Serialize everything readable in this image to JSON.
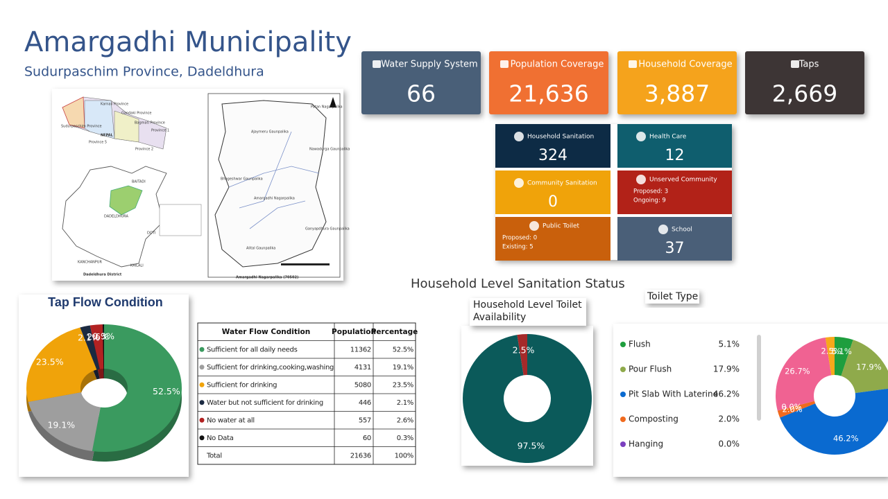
{
  "header": {
    "title": "Amargadhi Municipality",
    "subtitle": "Sudurpaschim Province, Dadeldhura"
  },
  "map": {
    "labels": [
      "NEPAL",
      "Karnali Province",
      "Gandaki Province",
      "Sudurpaschim Province",
      "Bagmati Province",
      "Province 1",
      "Province 2",
      "Province 5",
      "BAITADI",
      "DADELDHURA",
      "DOTI",
      "KANCHANPUR",
      "KAILALI",
      "Dadeldhura District",
      "Patan Nagarpalika",
      "Ajaymeru Gaunpalika",
      "Nawadurga Gaunpalika",
      "Bhageshwar Gaunpalika",
      "Amargadhi Nagarpalika",
      "Ganyapdhura Gaunpalika",
      "Alital Gaunpalika",
      "Amargadhi Nagarpalika (70502)"
    ]
  },
  "kpis": [
    {
      "label": "Water Supply System",
      "value": "66"
    },
    {
      "label": "Population Coverage",
      "value": "21,636"
    },
    {
      "label": "Household Coverage",
      "value": "3,887"
    },
    {
      "label": "Taps",
      "value": "2,669"
    }
  ],
  "cards": [
    {
      "label": "Household Sanitation",
      "value": "324"
    },
    {
      "label": "Health Care",
      "value": "12"
    },
    {
      "label": "Community Sanitation",
      "value": "0"
    },
    {
      "label": "Unserved Community",
      "lines": [
        "Proposed: 3",
        "Ongoing: 9"
      ]
    },
    {
      "label": "Public Toilet",
      "lines": [
        "Proposed: 0",
        "Existing: 5"
      ]
    },
    {
      "label": "School",
      "value": "37"
    }
  ],
  "table": {
    "columns": [
      "Water Flow Condition",
      "Population",
      "Percentage"
    ],
    "rows": [
      [
        "Sufficient for all daily needs",
        "11362",
        "52.5%"
      ],
      [
        "Sufficient for drinking,cooking,washing",
        "4131",
        "19.1%"
      ],
      [
        "Sufficient for drinking",
        "5080",
        "23.5%"
      ],
      [
        "Water but not sufficient for drinking",
        "446",
        "2.1%"
      ],
      [
        "No water at all",
        "557",
        "2.6%"
      ],
      [
        "No Data",
        "60",
        "0.3%"
      ],
      [
        "Total",
        "21636",
        "100%"
      ]
    ]
  },
  "section_title": "Household Level Sanitation Status",
  "chart_data": [
    {
      "type": "donut",
      "title": "Tap Flow Condition",
      "three_d": true,
      "categories": [
        "Sufficient for all daily needs",
        "Sufficient for drinking,cooking,washing",
        "Sufficient for drinking",
        "Water but not sufficient for drinking",
        "No water at all",
        "No Data"
      ],
      "values": [
        52.5,
        19.1,
        23.5,
        2.1,
        2.6,
        0.3
      ],
      "value_labels": [
        "52.5%",
        "19.1%",
        "23.5%",
        "2.1%",
        "2.6%",
        "0.3%"
      ],
      "colors": [
        "#3a9a5f",
        "#9e9e9e",
        "#f0a30a",
        "#1b2a41",
        "#b22222",
        "#111111"
      ]
    },
    {
      "type": "donut",
      "title": "Household Level Toilet Availability",
      "categories": [
        null,
        null
      ],
      "values": [
        97.5,
        2.5
      ],
      "value_labels": [
        "97.5%",
        "2.5%"
      ],
      "colors": [
        "#0b5a5a",
        "#a52a2a"
      ]
    },
    {
      "type": "donut",
      "title": "Toilet Type",
      "legend": "left",
      "categories": [
        "Flush",
        "Pour Flush",
        "Pit Slab With Laterine",
        "Composting",
        "Hanging",
        null,
        null
      ],
      "values": [
        5.1,
        17.9,
        46.2,
        2,
        0,
        26.7,
        2.5
      ],
      "value_labels": [
        "5.1%",
        "17.9%",
        "46.2%",
        "2.0%",
        "0.0%",
        "26.7%",
        "2.5%"
      ],
      "colors": [
        "#1e9e3e",
        "#8faa4b",
        "#0a6ad0",
        "#f06a1e",
        "#7b3fbf",
        "#f06292",
        "#f7a81b"
      ]
    }
  ]
}
